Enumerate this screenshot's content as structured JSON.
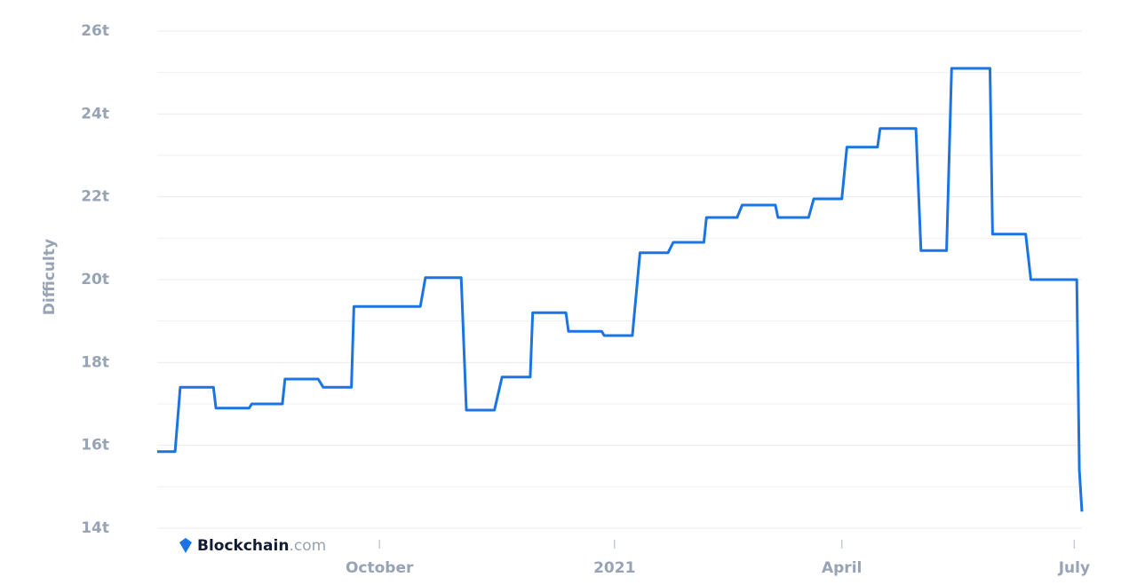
{
  "chart_data": {
    "type": "line",
    "y_label": "Difficulty",
    "x": [
      0,
      7,
      9,
      22,
      23,
      36,
      37,
      49,
      50,
      63,
      65,
      76,
      77,
      90,
      91,
      103,
      105,
      119,
      121,
      132,
      135,
      146,
      147,
      160,
      161,
      174,
      175,
      186,
      189,
      200,
      202,
      214,
      215,
      227,
      229,
      242,
      243,
      255,
      257,
      268,
      270,
      282,
      283,
      297,
      299,
      309,
      311,
      326,
      327,
      340,
      342,
      360,
      361,
      362
    ],
    "series": [
      {
        "name": "Difficulty",
        "color": "#1b74e4",
        "values": [
          15.85,
          15.85,
          17.4,
          17.4,
          16.9,
          16.9,
          17.0,
          17.0,
          17.6,
          17.6,
          17.4,
          17.4,
          19.35,
          19.35,
          19.35,
          19.35,
          20.05,
          20.05,
          16.85,
          16.85,
          17.65,
          17.65,
          19.2,
          19.2,
          18.75,
          18.75,
          18.65,
          18.65,
          20.65,
          20.65,
          20.9,
          20.9,
          21.5,
          21.5,
          21.8,
          21.8,
          21.5,
          21.5,
          21.95,
          21.95,
          23.2,
          23.2,
          23.65,
          23.65,
          20.7,
          20.7,
          25.1,
          25.1,
          21.1,
          21.1,
          20.0,
          20.0,
          15.4,
          14.4
        ]
      }
    ],
    "xlim": [
      0,
      362
    ],
    "xticks": [
      {
        "value": 87,
        "label": "October"
      },
      {
        "value": 179,
        "label": "2021"
      },
      {
        "value": 268,
        "label": "April"
      },
      {
        "value": 359,
        "label": "July"
      }
    ],
    "ylim": [
      14,
      26
    ],
    "yticks": [
      {
        "value": 14,
        "label": "14t"
      },
      {
        "value": 16,
        "label": "16t"
      },
      {
        "value": 18,
        "label": "18t"
      },
      {
        "value": 20,
        "label": "20t"
      },
      {
        "value": 22,
        "label": "22t"
      },
      {
        "value": 24,
        "label": "24t"
      },
      {
        "value": 26,
        "label": "26t"
      }
    ],
    "minor_yticks": [
      15,
      17,
      19,
      21,
      23,
      25
    ],
    "grid": true,
    "watermark": {
      "name": "Blockchain",
      "suffix": ".com"
    }
  }
}
